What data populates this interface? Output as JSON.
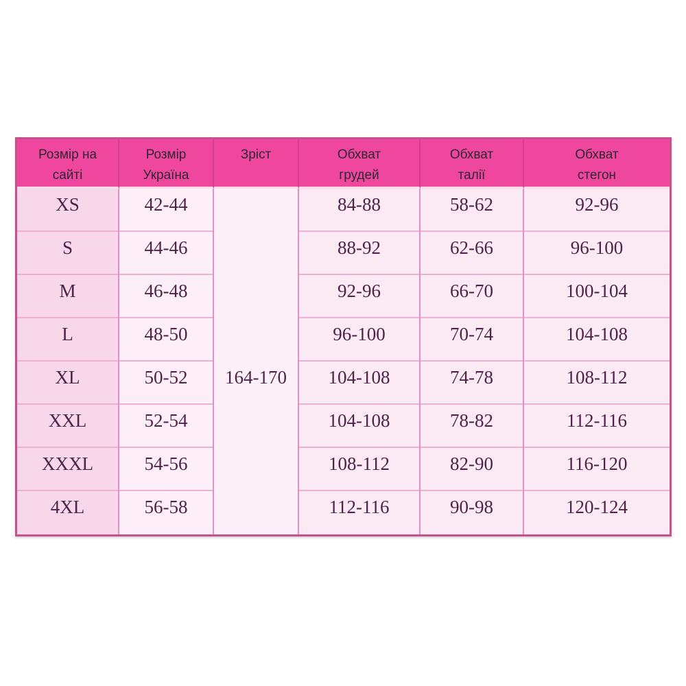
{
  "table": {
    "headers": [
      {
        "line1": "Розмір на",
        "line2": "сайті"
      },
      {
        "line1": "Розмір",
        "line2": "Україна"
      },
      {
        "line1": "Зріст",
        "line2": ""
      },
      {
        "line1": "Обхват",
        "line2": "грудей"
      },
      {
        "line1": "Обхват",
        "line2": "талії"
      },
      {
        "line1": "Обхват",
        "line2": "стегон"
      }
    ],
    "height_merged_value": "164-170",
    "rows": [
      {
        "size": "XS",
        "ua": "42-44",
        "chest": "84-88",
        "waist": "58-62",
        "hips": "92-96"
      },
      {
        "size": "S",
        "ua": "44-46",
        "chest": "88-92",
        "waist": "62-66",
        "hips": "96-100"
      },
      {
        "size": "M",
        "ua": "46-48",
        "chest": "92-96",
        "waist": "66-70",
        "hips": "100-104"
      },
      {
        "size": "L",
        "ua": "48-50",
        "chest": "96-100",
        "waist": "70-74",
        "hips": "104-108"
      },
      {
        "size": "XL",
        "ua": "50-52",
        "chest": "104-108",
        "waist": "74-78",
        "hips": "108-112"
      },
      {
        "size": "XXL",
        "ua": "52-54",
        "chest": "104-108",
        "waist": "78-82",
        "hips": "112-116"
      },
      {
        "size": "XXXL",
        "ua": "54-56",
        "chest": "108-112",
        "waist": "82-90",
        "hips": "116-120"
      },
      {
        "size": "4XL",
        "ua": "56-58",
        "chest": "112-116",
        "waist": "90-98",
        "hips": "120-124"
      }
    ]
  },
  "colors": {
    "header_bg": "#f0479e",
    "header_divider": "#d93b8e",
    "outer_border": "#c4528f",
    "row_divider": "#ecb0d3",
    "column_divider": "#e091c2",
    "col1_bg": "#f8d7eb",
    "col2_bg": "#fdeef7",
    "height_col_bg": "#fdf0f8",
    "data_bg": "#fbe9f4",
    "body_text": "#4d2347",
    "header_text": "#2d2732"
  },
  "chart_data": {
    "type": "table",
    "columns": [
      "Розмір на сайті",
      "Розмір Україна",
      "Зріст",
      "Обхват грудей",
      "Обхват талії",
      "Обхват стегон"
    ],
    "rows": [
      [
        "XS",
        "42-44",
        "164-170",
        "84-88",
        "58-62",
        "92-96"
      ],
      [
        "S",
        "44-46",
        "164-170",
        "88-92",
        "62-66",
        "96-100"
      ],
      [
        "M",
        "46-48",
        "164-170",
        "92-96",
        "66-70",
        "100-104"
      ],
      [
        "L",
        "48-50",
        "164-170",
        "96-100",
        "70-74",
        "104-108"
      ],
      [
        "XL",
        "50-52",
        "164-170",
        "104-108",
        "74-78",
        "108-112"
      ],
      [
        "XXL",
        "52-54",
        "164-170",
        "104-108",
        "78-82",
        "112-116"
      ],
      [
        "XXXL",
        "54-56",
        "164-170",
        "108-112",
        "82-90",
        "116-120"
      ],
      [
        "4XL",
        "56-58",
        "164-170",
        "112-116",
        "90-98",
        "120-124"
      ]
    ],
    "merged_cells": [
      {
        "column": "Зріст",
        "value": "164-170",
        "spans_all_rows": true
      }
    ],
    "title": "",
    "legend_position": "none",
    "grid": true
  }
}
